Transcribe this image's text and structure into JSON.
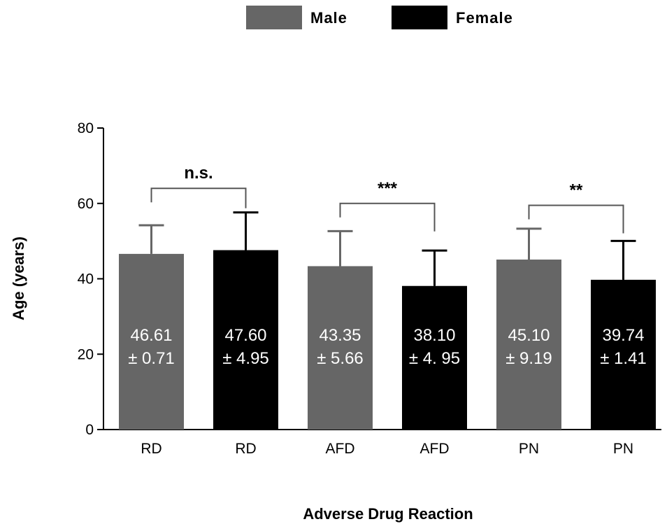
{
  "chart_data": {
    "type": "bar",
    "xlabel": "Adverse Drug Reaction",
    "ylabel": "Age (years)",
    "ylim": [
      0,
      80
    ],
    "yticks": [
      "0",
      "20",
      "40",
      "60",
      "80"
    ],
    "legend": {
      "placement": "top-center",
      "entries": [
        {
          "name": "Male",
          "color": "#666666"
        },
        {
          "name": "Female",
          "color": "#000000"
        }
      ]
    },
    "bars": [
      {
        "category": "RD",
        "group": "Male",
        "value": 46.61,
        "error": 7.6,
        "label_line1": "46.61",
        "label_line2": "± 0.71"
      },
      {
        "category": "RD",
        "group": "Female",
        "value": 47.6,
        "error": 10.0,
        "label_line1": "47.60",
        "label_line2": "± 4.95"
      },
      {
        "category": "AFD",
        "group": "Male",
        "value": 43.35,
        "error": 9.3,
        "label_line1": "43.35",
        "label_line2": "± 5.66"
      },
      {
        "category": "AFD",
        "group": "Female",
        "value": 38.1,
        "error": 9.4,
        "label_line1": "38.10",
        "label_line2": "± 4. 95"
      },
      {
        "category": "PN",
        "group": "Male",
        "value": 45.1,
        "error": 8.2,
        "label_line1": "45.10",
        "label_line2": "± 9.19"
      },
      {
        "category": "PN",
        "group": "Female",
        "value": 39.74,
        "error": 10.3,
        "label_line1": "39.74",
        "label_line2": "± 1.41"
      }
    ],
    "significance": [
      {
        "from": 0,
        "to": 1,
        "text": "n.s.",
        "level": 64
      },
      {
        "from": 2,
        "to": 3,
        "text": "***",
        "level": 60
      },
      {
        "from": 4,
        "to": 5,
        "text": "**",
        "level": 59.5
      }
    ]
  }
}
